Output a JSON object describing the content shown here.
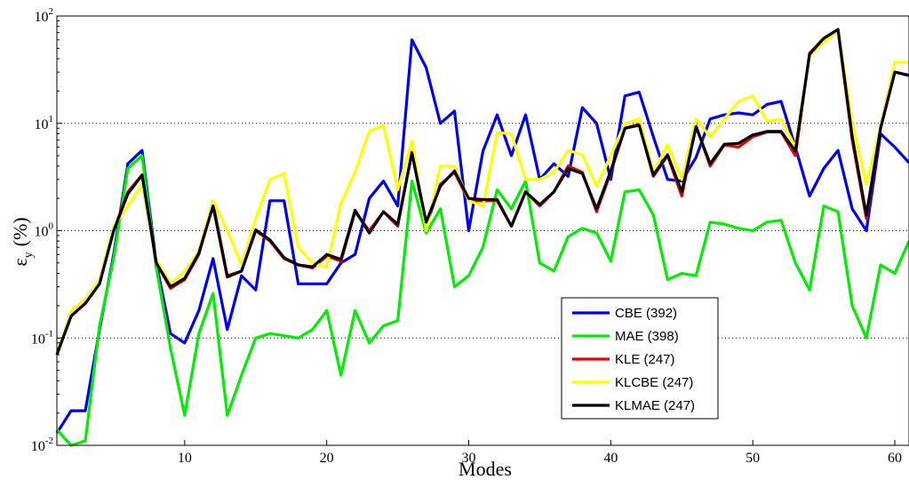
{
  "chart_data": {
    "type": "line",
    "xlabel": "Modes",
    "ylabel_main": "ε",
    "ylabel_sub": "y",
    "ylabel_unit": "(%)",
    "xlim": [
      1,
      61
    ],
    "ylim": [
      0.01,
      100
    ],
    "yscale": "log",
    "grid": "horizontal-dotted",
    "legend_position": "lower-right",
    "xticks": [
      10,
      20,
      30,
      40,
      50,
      60
    ],
    "yticks": [
      {
        "value": 0.01,
        "base": "10",
        "exp": "-2"
      },
      {
        "value": 0.1,
        "base": "10",
        "exp": "-1"
      },
      {
        "value": 1,
        "base": "10",
        "exp": "0"
      },
      {
        "value": 10,
        "base": "10",
        "exp": "1"
      },
      {
        "value": 100,
        "base": "10",
        "exp": "2"
      }
    ],
    "x": [
      1,
      2,
      3,
      4,
      5,
      6,
      7,
      8,
      9,
      10,
      11,
      12,
      13,
      14,
      15,
      16,
      17,
      18,
      19,
      20,
      21,
      22,
      23,
      24,
      25,
      26,
      27,
      28,
      29,
      30,
      31,
      32,
      33,
      34,
      35,
      36,
      37,
      38,
      39,
      40,
      41,
      42,
      43,
      44,
      45,
      46,
      47,
      48,
      49,
      50,
      51,
      52,
      53,
      54,
      55,
      56,
      57,
      58,
      59,
      60,
      61
    ],
    "series": [
      {
        "name": "CBE (392)",
        "color": "#0000ee",
        "values": [
          0.013,
          0.021,
          0.021,
          0.12,
          0.6,
          4.2,
          5.6,
          0.5,
          0.11,
          0.09,
          0.18,
          0.55,
          0.12,
          0.38,
          0.28,
          1.9,
          1.9,
          0.32,
          0.32,
          0.32,
          0.5,
          0.6,
          2.0,
          2.9,
          1.7,
          60,
          33,
          10,
          13,
          1.0,
          5.5,
          12,
          5.0,
          12,
          3.0,
          4.2,
          3.2,
          14,
          10,
          3.0,
          18,
          19.5,
          7.5,
          3.0,
          2.9,
          4.8,
          11,
          12,
          12.5,
          12,
          15,
          16,
          6.0,
          2.1,
          3.8,
          5.6,
          1.6,
          1.0,
          8.0,
          6.0,
          4.3
        ]
      },
      {
        "name": "MAE (398)",
        "color": "#00ee00",
        "values": [
          0.014,
          0.01,
          0.011,
          0.13,
          0.55,
          3.8,
          5.0,
          0.45,
          0.08,
          0.019,
          0.11,
          0.26,
          0.019,
          0.045,
          0.1,
          0.11,
          0.105,
          0.1,
          0.12,
          0.18,
          0.045,
          0.18,
          0.09,
          0.13,
          0.145,
          2.9,
          0.95,
          1.6,
          0.3,
          0.38,
          0.7,
          2.4,
          1.6,
          2.9,
          0.5,
          0.42,
          0.88,
          1.05,
          0.95,
          0.52,
          2.3,
          2.4,
          1.4,
          0.35,
          0.4,
          0.38,
          1.2,
          1.15,
          1.05,
          1.0,
          1.2,
          1.25,
          0.5,
          0.28,
          1.7,
          1.5,
          0.2,
          0.1,
          0.48,
          0.4,
          0.8
        ]
      },
      {
        "name": "KLE (247)",
        "color": "#ee0000",
        "values": [
          0.07,
          0.16,
          0.21,
          0.32,
          1.0,
          2.3,
          3.3,
          0.5,
          0.29,
          0.35,
          0.6,
          1.8,
          0.38,
          0.42,
          1.0,
          0.8,
          0.55,
          0.48,
          0.45,
          0.58,
          0.52,
          1.5,
          1.0,
          1.5,
          1.1,
          5.4,
          1.1,
          2.7,
          3.5,
          1.9,
          1.9,
          1.9,
          1.1,
          2.3,
          1.7,
          2.3,
          4.0,
          3.5,
          1.5,
          3.5,
          9.0,
          9.8,
          3.2,
          5.0,
          2.1,
          9.5,
          4.0,
          6.3,
          6.0,
          7.5,
          8.3,
          8.3,
          5.0,
          45,
          62,
          74,
          7.0,
          1.3,
          9.0,
          30,
          28
        ]
      },
      {
        "name": "KLCBE (247)",
        "color": "#ffff00",
        "values": [
          0.07,
          0.18,
          0.23,
          0.35,
          1.1,
          1.7,
          2.7,
          0.53,
          0.32,
          0.42,
          0.65,
          1.9,
          1.0,
          0.48,
          1.3,
          3.0,
          3.4,
          0.7,
          0.5,
          0.46,
          1.8,
          3.5,
          8.5,
          9.5,
          2.4,
          6.8,
          1.0,
          4.0,
          4.0,
          1.9,
          1.7,
          8.2,
          8.0,
          3.0,
          3.0,
          3.5,
          5.6,
          5.1,
          2.6,
          5.0,
          10,
          11,
          3.5,
          6.3,
          3.0,
          11,
          7.5,
          11,
          16,
          18,
          10.5,
          11,
          6.0,
          43,
          57,
          73,
          10,
          2.7,
          9.5,
          37,
          37
        ]
      },
      {
        "name": "KLMAE (247)",
        "color": "#000000",
        "values": [
          0.07,
          0.16,
          0.21,
          0.32,
          1.0,
          2.2,
          3.3,
          0.5,
          0.3,
          0.36,
          0.62,
          1.7,
          0.37,
          0.42,
          1.02,
          0.82,
          0.56,
          0.48,
          0.46,
          0.6,
          0.54,
          1.55,
          0.95,
          1.5,
          1.15,
          5.3,
          1.2,
          2.6,
          3.6,
          2.0,
          1.95,
          1.95,
          1.1,
          2.3,
          1.75,
          2.3,
          3.8,
          3.4,
          1.6,
          3.6,
          9.0,
          9.6,
          3.3,
          5.1,
          2.3,
          9.3,
          4.2,
          6.4,
          6.5,
          7.8,
          8.4,
          8.4,
          5.5,
          44,
          62,
          75,
          7.5,
          1.4,
          9.0,
          30,
          28
        ]
      }
    ]
  }
}
